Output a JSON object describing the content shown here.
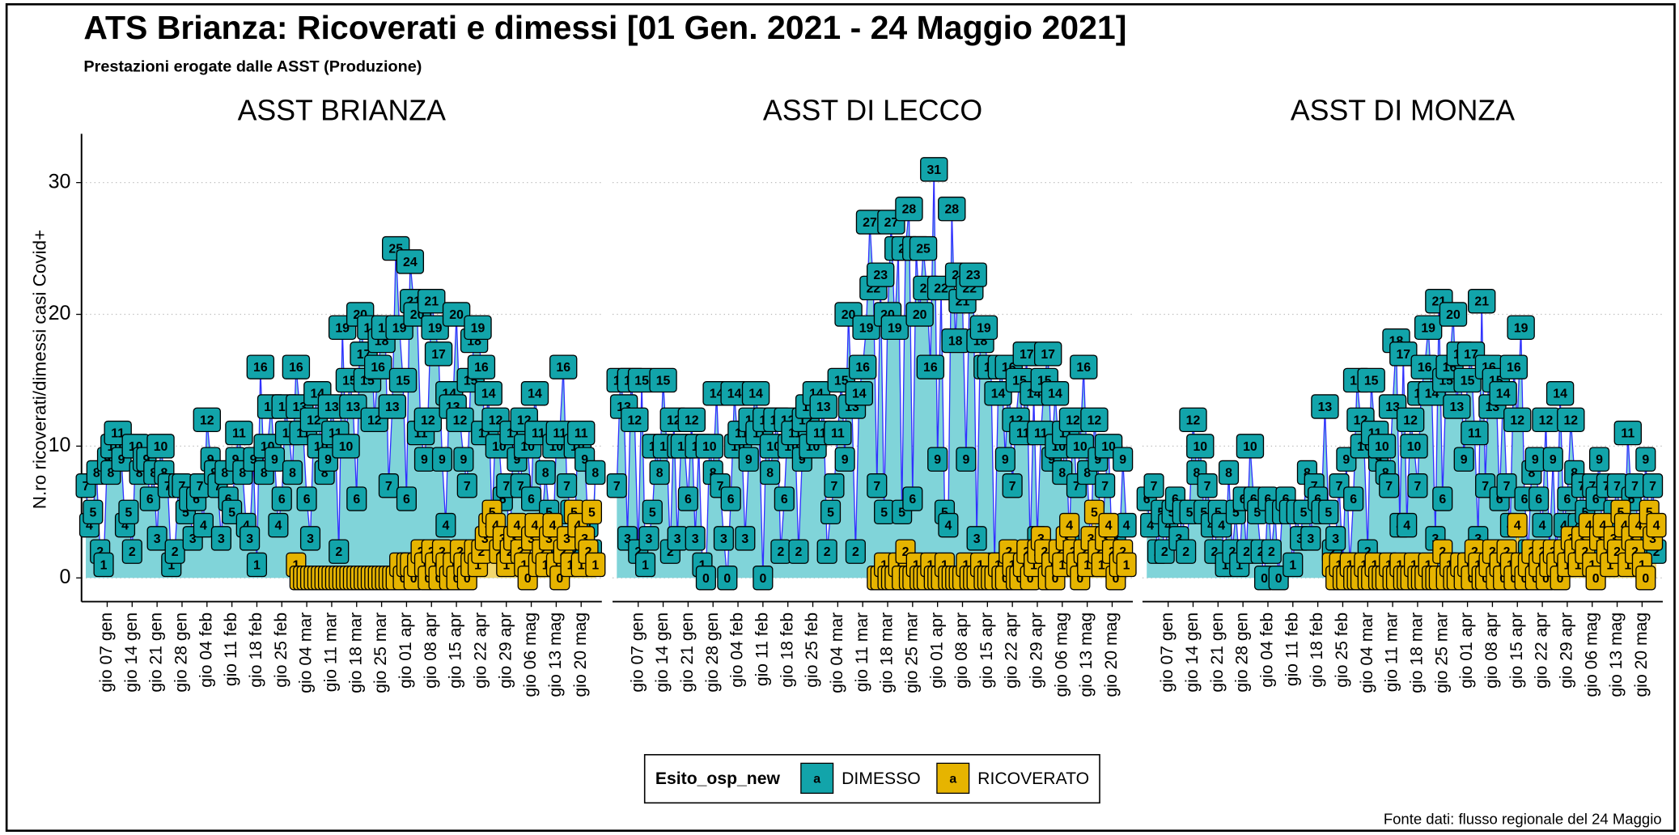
{
  "title": "ATS Brianza: Ricoverati e dimessi [01 Gen. 2021 - 24 Maggio 2021]",
  "subtitle": "Prestazioni erogate dalle ASST (Produzione)",
  "y_label": "N.ro ricoverati/dimessi casi Covid+",
  "legend": {
    "title": "Esito_osp_new",
    "key_label": "a"
  },
  "source": "Fonte dati: flusso regionale del 24 Maggio",
  "chart_data": {
    "type": "area",
    "line_color": "#3030ff",
    "grid": true,
    "ylim": [
      -1.8,
      33.7
    ],
    "yticks": [
      0,
      10,
      20,
      30
    ],
    "categories": [
      null,
      null,
      null,
      null,
      null,
      null,
      "gio 07 gen",
      null,
      null,
      null,
      null,
      null,
      null,
      "gio 14 gen",
      null,
      null,
      null,
      null,
      null,
      null,
      "gio 21 gen",
      null,
      null,
      null,
      null,
      null,
      null,
      "gio 28 gen",
      null,
      null,
      null,
      null,
      null,
      null,
      "gio 04 feb",
      null,
      null,
      null,
      null,
      null,
      null,
      "gio 11 feb",
      null,
      null,
      null,
      null,
      null,
      null,
      "gio 18 feb",
      null,
      null,
      null,
      null,
      null,
      null,
      "gio 25 feb",
      null,
      null,
      null,
      null,
      null,
      null,
      "gio 04 mar",
      null,
      null,
      null,
      null,
      null,
      null,
      "gio 11 mar",
      null,
      null,
      null,
      null,
      null,
      null,
      "gio 18 mar",
      null,
      null,
      null,
      null,
      null,
      null,
      "gio 25 mar",
      null,
      null,
      null,
      null,
      null,
      null,
      "gio 01 apr",
      null,
      null,
      null,
      null,
      null,
      null,
      "gio 08 apr",
      null,
      null,
      null,
      null,
      null,
      null,
      "gio 15 apr",
      null,
      null,
      null,
      null,
      null,
      null,
      "gio 22 apr",
      null,
      null,
      null,
      null,
      null,
      null,
      "gio 29 apr",
      null,
      null,
      null,
      null,
      null,
      null,
      "gio 06 mag",
      null,
      null,
      null,
      null,
      null,
      null,
      "gio 13 mag",
      null,
      null,
      null,
      null,
      null,
      null,
      "gio 20 mag",
      null,
      null,
      null,
      null
    ],
    "facets": [
      {
        "title": "ASST BRIANZA",
        "series": [
          {
            "name": "DIMESSO",
            "color": "#12a4aa",
            "area_color": "#80d4d9",
            "values": [
              7,
              4,
              5,
              8,
              2,
              1,
              9,
              8,
              10,
              11,
              9,
              4,
              5,
              2,
              10,
              8,
              9,
              9,
              6,
              8,
              3,
              10,
              8,
              7,
              1,
              2,
              7,
              7,
              5,
              6,
              3,
              6,
              7,
              4,
              12,
              9,
              8,
              7,
              3,
              8,
              6,
              5,
              9,
              11,
              8,
              4,
              3,
              9,
              1,
              16,
              8,
              10,
              13,
              9,
              4,
              6,
              13,
              11,
              8,
              16,
              13,
              11,
              6,
              3,
              12,
              14,
              10,
              8,
              9,
              13,
              11,
              2,
              19,
              10,
              15,
              13,
              6,
              20,
              17,
              15,
              19,
              12,
              16,
              18,
              19,
              7,
              13,
              25,
              19,
              15,
              6,
              24,
              21,
              20,
              11,
              9,
              12,
              21,
              19,
              17,
              9,
              4,
              14,
              13,
              20,
              12,
              9,
              7,
              15,
              18,
              19,
              16,
              11,
              14,
              4,
              12,
              10,
              6,
              7,
              2,
              11,
              9,
              7,
              12,
              10,
              6,
              14,
              11,
              4,
              8,
              5,
              2,
              10,
              11,
              16,
              7,
              5,
              2,
              10,
              11,
              9,
              4,
              2,
              8
            ]
          },
          {
            "name": "RICOVERATO",
            "color": "#e6b400",
            "area_color": "#f2d870",
            "values": [
              null,
              null,
              null,
              null,
              null,
              null,
              null,
              null,
              null,
              null,
              null,
              null,
              null,
              null,
              null,
              null,
              null,
              null,
              null,
              null,
              null,
              null,
              null,
              null,
              null,
              null,
              null,
              null,
              null,
              null,
              null,
              null,
              null,
              null,
              null,
              null,
              null,
              null,
              null,
              null,
              null,
              null,
              null,
              null,
              null,
              null,
              null,
              null,
              null,
              null,
              null,
              null,
              null,
              null,
              null,
              null,
              null,
              null,
              null,
              1,
              0,
              0,
              0,
              0,
              0,
              0,
              0,
              0,
              0,
              0,
              0,
              0,
              0,
              0,
              0,
              0,
              0,
              0,
              0,
              0,
              0,
              0,
              0,
              0,
              0,
              0,
              0,
              0,
              1,
              0,
              1,
              1,
              0,
              1,
              2,
              1,
              0,
              2,
              1,
              0,
              2,
              1,
              0,
              1,
              0,
              2,
              1,
              0,
              1,
              2,
              1,
              2,
              3,
              4,
              5,
              4,
              2,
              3,
              1,
              2,
              3,
              4,
              2,
              1,
              0,
              3,
              4,
              1,
              2,
              1,
              3,
              4,
              1,
              0,
              2,
              3,
              1,
              5,
              4,
              1,
              3,
              2,
              5,
              1
            ]
          }
        ]
      },
      {
        "title": "ASST DI LECCO",
        "series": [
          {
            "name": "DIMESSO",
            "color": "#12a4aa",
            "area_color": "#80d4d9",
            "values": [
              7,
              15,
              13,
              3,
              15,
              12,
              2,
              15,
              1,
              3,
              5,
              10,
              8,
              15,
              10,
              2,
              12,
              3,
              10,
              10,
              6,
              12,
              3,
              10,
              1,
              0,
              10,
              8,
              14,
              7,
              3,
              0,
              6,
              14,
              10,
              11,
              3,
              9,
              12,
              14,
              11,
              0,
              12,
              8,
              10,
              12,
              2,
              6,
              12,
              10,
              11,
              2,
              9,
              12,
              13,
              10,
              14,
              11,
              13,
              2,
              5,
              7,
              11,
              15,
              9,
              20,
              13,
              2,
              14,
              16,
              19,
              27,
              22,
              7,
              23,
              5,
              20,
              27,
              19,
              25,
              5,
              25,
              28,
              6,
              25,
              20,
              25,
              22,
              16,
              31,
              9,
              22,
              5,
              4,
              28,
              18,
              23,
              21,
              9,
              22,
              23,
              3,
              18,
              19,
              16,
              16,
              1,
              14,
              16,
              9,
              16,
              7,
              12,
              15,
              11,
              17,
              2,
              14,
              3,
              11,
              15,
              17,
              9,
              14,
              10,
              8,
              11,
              3,
              12,
              7,
              10,
              16,
              8,
              2,
              12,
              9,
              1,
              7,
              10,
              2,
              3,
              2,
              9,
              4
            ]
          },
          {
            "name": "RICOVERATO",
            "color": "#e6b400",
            "area_color": "#f2d870",
            "values": [
              null,
              null,
              null,
              null,
              null,
              null,
              null,
              null,
              null,
              null,
              null,
              null,
              null,
              null,
              null,
              null,
              null,
              null,
              null,
              null,
              null,
              null,
              null,
              null,
              null,
              null,
              null,
              null,
              null,
              null,
              null,
              null,
              null,
              null,
              null,
              null,
              null,
              null,
              null,
              null,
              null,
              null,
              null,
              null,
              null,
              null,
              null,
              null,
              null,
              null,
              null,
              null,
              null,
              null,
              null,
              null,
              null,
              null,
              null,
              null,
              null,
              null,
              null,
              null,
              null,
              null,
              null,
              null,
              null,
              null,
              null,
              null,
              null,
              0,
              0,
              1,
              0,
              0,
              0,
              1,
              0,
              2,
              0,
              0,
              1,
              0,
              0,
              0,
              1,
              0,
              0,
              0,
              1,
              0,
              0,
              0,
              0,
              0,
              1,
              0,
              0,
              0,
              1,
              0,
              0,
              0,
              0,
              1,
              0,
              0,
              2,
              1,
              0,
              0,
              1,
              2,
              0,
              1,
              2,
              3,
              2,
              0,
              1,
              0,
              2,
              1,
              3,
              4,
              2,
              1,
              0,
              2,
              1,
              3,
              5,
              2,
              1,
              3,
              4,
              2,
              0,
              1,
              2,
              1
            ]
          }
        ]
      },
      {
        "title": "ASST DI MONZA",
        "series": [
          {
            "name": "DIMESSO",
            "color": "#12a4aa",
            "area_color": "#80d4d9",
            "values": [
              6,
              4,
              7,
              2,
              5,
              2,
              4,
              5,
              6,
              3,
              5,
              2,
              5,
              12,
              8,
              10,
              5,
              7,
              4,
              2,
              5,
              4,
              1,
              8,
              2,
              5,
              1,
              6,
              2,
              10,
              6,
              5,
              2,
              0,
              6,
              2,
              5,
              0,
              5,
              6,
              5,
              1,
              5,
              3,
              5,
              8,
              3,
              7,
              6,
              5,
              13,
              5,
              2,
              3,
              7,
              1,
              9,
              1,
              6,
              15,
              12,
              10,
              2,
              15,
              11,
              9,
              10,
              8,
              7,
              13,
              18,
              4,
              17,
              4,
              12,
              10,
              7,
              14,
              16,
              19,
              14,
              3,
              21,
              6,
              15,
              16,
              20,
              13,
              17,
              9,
              15,
              17,
              11,
              3,
              21,
              7,
              16,
              13,
              15,
              6,
              14,
              7,
              4,
              16,
              12,
              19,
              6,
              2,
              8,
              9,
              6,
              4,
              12,
              2,
              9,
              1,
              14,
              4,
              6,
              12,
              8,
              4,
              7,
              5,
              1,
              7,
              6,
              9,
              2,
              7,
              1,
              5,
              7,
              4,
              2,
              11,
              6,
              7,
              3,
              2,
              9,
              4,
              7,
              2
            ]
          },
          {
            "name": "RICOVERATO",
            "color": "#e6b400",
            "area_color": "#f2d870",
            "values": [
              null,
              null,
              null,
              null,
              null,
              null,
              null,
              null,
              null,
              null,
              null,
              null,
              null,
              null,
              null,
              null,
              null,
              null,
              null,
              null,
              null,
              null,
              null,
              null,
              null,
              null,
              null,
              null,
              null,
              null,
              null,
              null,
              null,
              null,
              null,
              null,
              null,
              null,
              null,
              null,
              null,
              null,
              null,
              null,
              null,
              null,
              null,
              null,
              null,
              null,
              null,
              null,
              1,
              0,
              1,
              0,
              0,
              1,
              0,
              0,
              0,
              1,
              0,
              0,
              1,
              0,
              0,
              0,
              1,
              0,
              0,
              1,
              0,
              0,
              0,
              1,
              0,
              0,
              0,
              1,
              0,
              0,
              0,
              2,
              0,
              1,
              0,
              0,
              1,
              0,
              1,
              0,
              2,
              1,
              0,
              0,
              1,
              2,
              0,
              1,
              0,
              2,
              1,
              0,
              4,
              1,
              0,
              1,
              2,
              0,
              1,
              2,
              0,
              1,
              2,
              1,
              0,
              2,
              1,
              3,
              2,
              1,
              3,
              2,
              4,
              1,
              0,
              3,
              4,
              2,
              1,
              3,
              2,
              5,
              4,
              1,
              3,
              2,
              4,
              1,
              0,
              5,
              3,
              4
            ]
          }
        ]
      }
    ]
  }
}
